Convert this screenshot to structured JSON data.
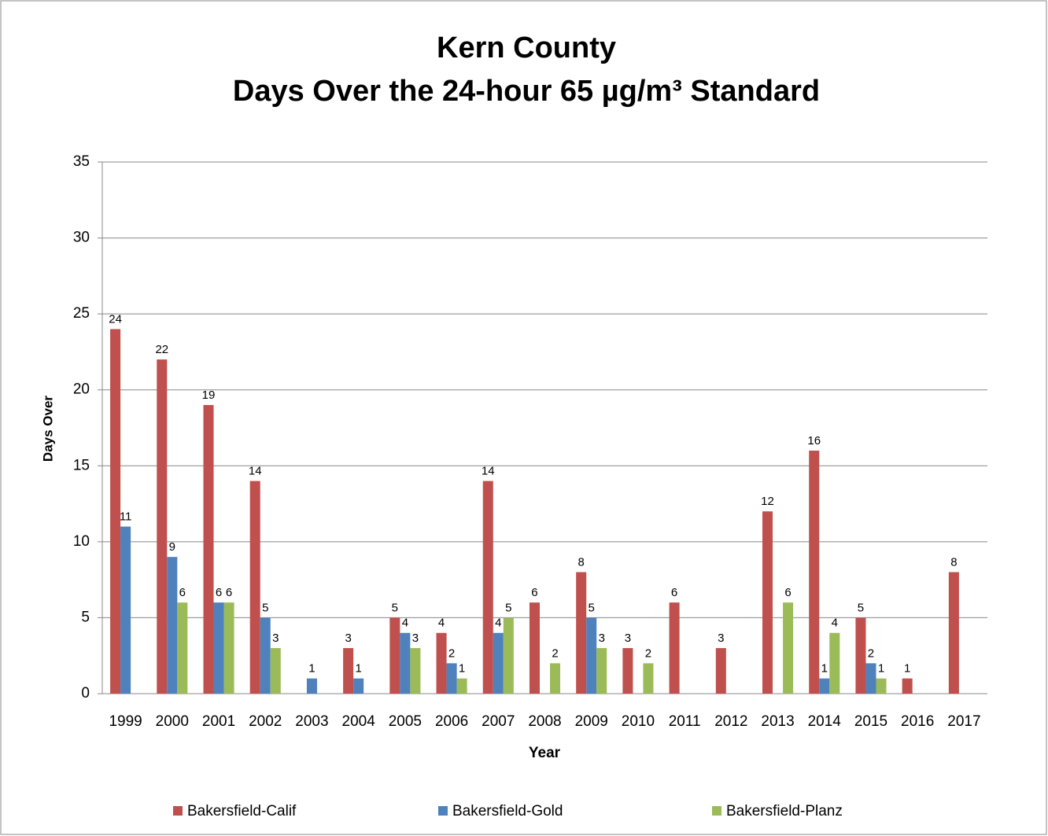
{
  "chart_data": {
    "type": "bar",
    "title": "Kern County",
    "subtitle": "Days Over the 24-hour 65 µg/m³ Standard",
    "x_label": "Year",
    "y_label": "Days Over",
    "categories": [
      "1999",
      "2000",
      "2001",
      "2002",
      "2003",
      "2004",
      "2005",
      "2006",
      "2007",
      "2008",
      "2009",
      "2010",
      "2011",
      "2012",
      "2013",
      "2014",
      "2015",
      "2016",
      "2017"
    ],
    "series": [
      {
        "name": "Bakersfield-Calif",
        "color": "#c0504d",
        "values": [
          24,
          22,
          19,
          14,
          null,
          3,
          5,
          4,
          14,
          6,
          8,
          3,
          6,
          3,
          12,
          16,
          5,
          1,
          8
        ]
      },
      {
        "name": "Bakersfield-Gold",
        "color": "#4f81bd",
        "values": [
          11,
          9,
          6,
          5,
          1,
          1,
          4,
          2,
          4,
          null,
          5,
          null,
          null,
          null,
          null,
          1,
          2,
          null,
          null
        ]
      },
      {
        "name": "Bakersfield-Planz",
        "color": "#9bbb59",
        "values": [
          null,
          6,
          6,
          3,
          null,
          null,
          3,
          1,
          5,
          2,
          3,
          2,
          null,
          null,
          6,
          4,
          1,
          null,
          null
        ]
      }
    ],
    "ylim": [
      0,
      35
    ],
    "yticks": [
      0,
      5,
      10,
      15,
      20,
      25,
      30,
      35
    ],
    "grid": true,
    "legend": "bottom"
  }
}
